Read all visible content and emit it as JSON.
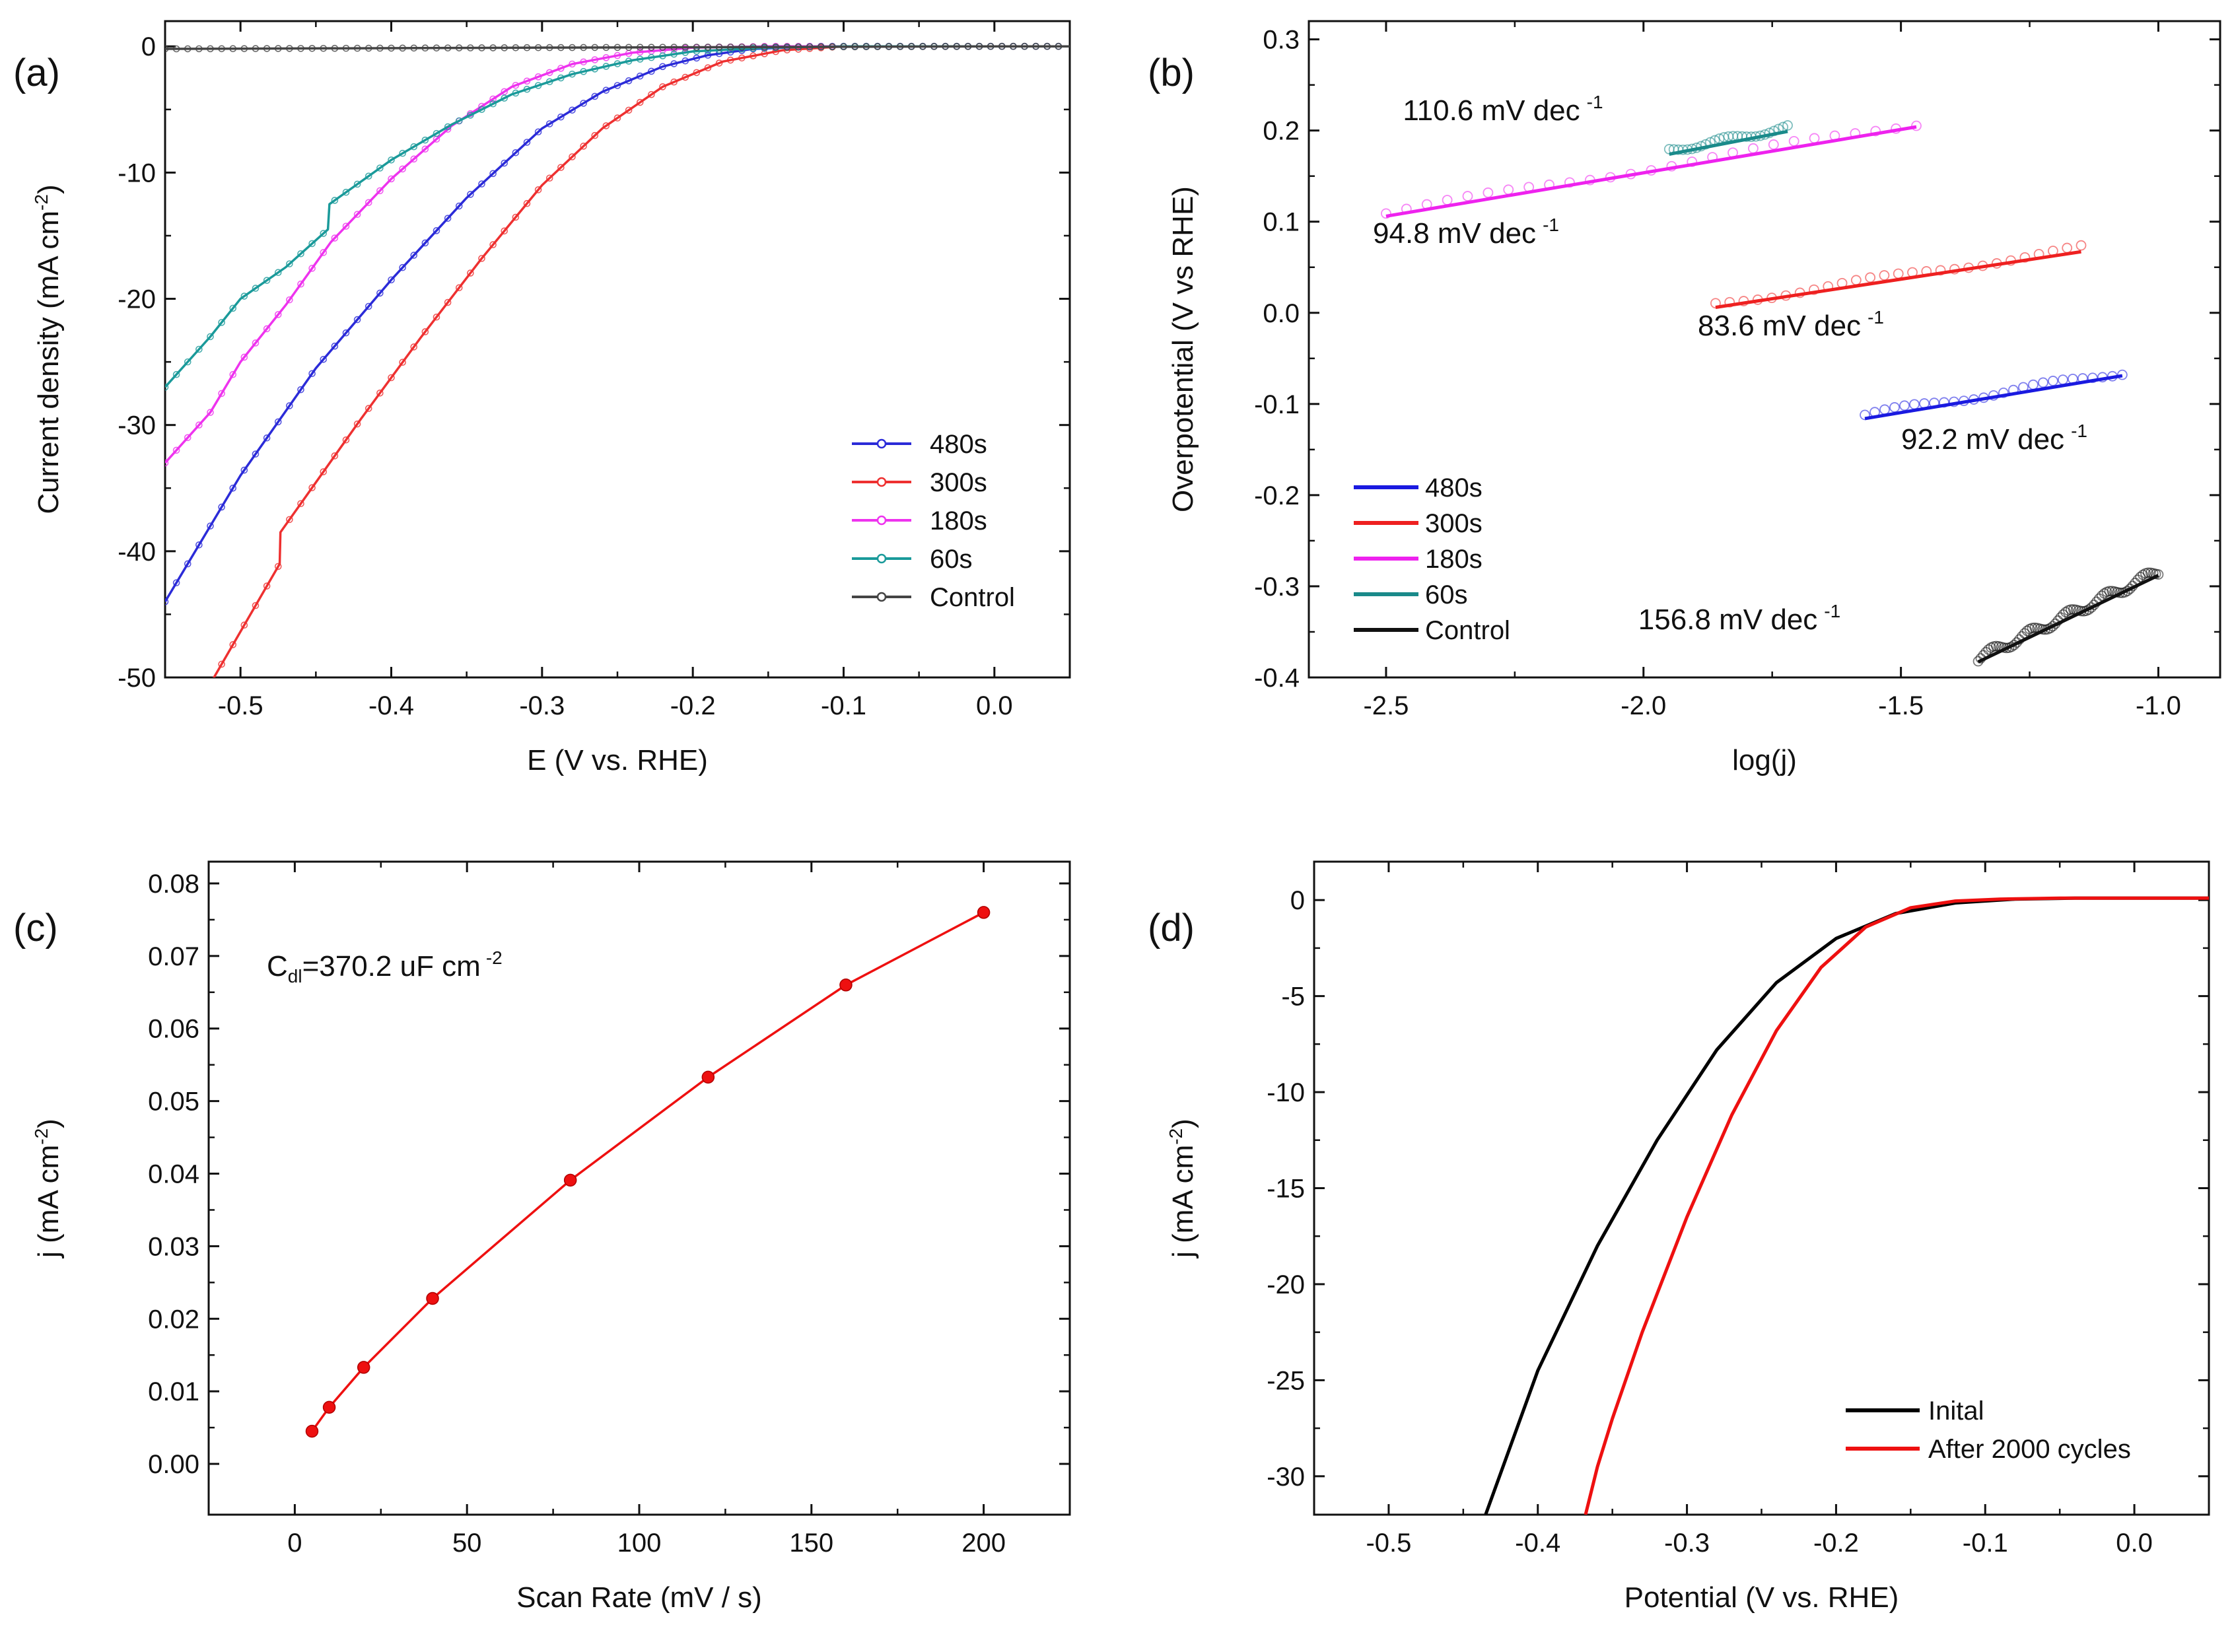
{
  "chart_data": [
    {
      "panel": "(a)",
      "type": "line",
      "xlabel": "E (V vs. RHE)",
      "ylabel": "Current density (mA cm",
      "ylabel_sup": "-2",
      "ylabel_end": ")",
      "xlim": [
        -0.55,
        0.05
      ],
      "ylim": [
        -50,
        2
      ],
      "xticks": [
        -0.5,
        -0.4,
        -0.3,
        -0.2,
        -0.1,
        0.0
      ],
      "xtick_labels": [
        "-0.5",
        "-0.4",
        "-0.3",
        "-0.2",
        "-0.1",
        "0.0"
      ],
      "yticks": [
        0,
        -10,
        -20,
        -30,
        -40,
        -50
      ],
      "ytick_labels": [
        "0",
        "-10",
        "-20",
        "-30",
        "-40",
        "-50"
      ],
      "legend_position": "bottom-right",
      "series": [
        {
          "name": "480s",
          "color": "#2b2bd8",
          "marker": "circle",
          "x": [
            -0.55,
            -0.5,
            -0.45,
            -0.4,
            -0.35,
            -0.3,
            -0.26,
            -0.22,
            -0.19,
            -0.16,
            -0.12,
            -0.05,
            0.0,
            0.05
          ],
          "y": [
            -44,
            -34,
            -25.5,
            -18.5,
            -12,
            -6.5,
            -3.6,
            -1.6,
            -0.7,
            -0.2,
            0,
            0,
            0,
            0
          ]
        },
        {
          "name": "300s",
          "color": "#ee3030",
          "marker": "circle",
          "x": [
            -0.52,
            -0.474,
            -0.4735,
            -0.42,
            -0.38,
            -0.34,
            -0.3,
            -0.26,
            -0.22,
            -0.18,
            -0.14,
            -0.1,
            -0.05,
            0.0,
            0.05
          ],
          "y": [
            -50.5,
            -41,
            -38.5,
            -29.5,
            -23,
            -16.8,
            -11,
            -6.5,
            -3.2,
            -1.2,
            -0.3,
            0,
            0,
            0,
            0
          ]
        },
        {
          "name": "180s",
          "color": "#ee33ee",
          "marker": "circle",
          "x": [
            -0.55,
            -0.52,
            -0.5,
            -0.47,
            -0.44,
            -0.4,
            -0.36,
            -0.32,
            -0.28,
            -0.24,
            -0.2,
            -0.15,
            -0.1,
            0.05
          ],
          "y": [
            -33,
            -29,
            -25,
            -20.5,
            -15.5,
            -10.5,
            -6.3,
            -3.2,
            -1.4,
            -0.5,
            -0.1,
            0,
            0,
            0
          ]
        },
        {
          "name": "60s",
          "color": "#1a9a9a",
          "marker": "circle",
          "x": [
            -0.55,
            -0.52,
            -0.5,
            -0.47,
            -0.442,
            -0.441,
            -0.4,
            -0.36,
            -0.32,
            -0.28,
            -0.24,
            -0.2,
            -0.15,
            -0.1,
            0.05
          ],
          "y": [
            -27,
            -23,
            -20,
            -17.5,
            -14.5,
            -12.5,
            -9,
            -6.2,
            -3.8,
            -2.2,
            -1.1,
            -0.4,
            -0.1,
            0,
            0
          ]
        },
        {
          "name": "Control",
          "color": "#444444",
          "marker": "circle",
          "x": [
            -0.55,
            -0.3,
            0.0,
            0.05
          ],
          "y": [
            -0.2,
            -0.1,
            0,
            0
          ]
        }
      ]
    },
    {
      "panel": "(b)",
      "type": "scatter",
      "xlabel": "log(j)",
      "ylabel": "Overpotential (V vs RHE)",
      "xlim": [
        -2.65,
        -0.88
      ],
      "ylim": [
        -0.4,
        0.32
      ],
      "xticks": [
        -2.5,
        -2.0,
        -1.5,
        -1.0
      ],
      "xtick_labels": [
        "-2.5",
        "-2.0",
        "-1.5",
        "-1.0"
      ],
      "yticks": [
        0.3,
        0.2,
        0.1,
        0.0,
        -0.1,
        -0.2,
        -0.3,
        -0.4
      ],
      "ytick_labels": [
        "0.3",
        "0.2",
        "0.1",
        "0.0",
        "-0.1",
        "-0.2",
        "-0.3",
        "-0.4"
      ],
      "legend_position": "bottom-left",
      "series": [
        {
          "name": "480s",
          "color": "#1a1ae0",
          "fit_x": [
            -1.57,
            -1.07
          ],
          "fit_y": [
            -0.116,
            -0.069
          ],
          "slope_label": "92.2 mV dec",
          "slope_unit_sup": "-1"
        },
        {
          "name": "300s",
          "color": "#ee2020",
          "fit_x": [
            -1.86,
            -1.15
          ],
          "fit_y": [
            0.006,
            0.067
          ],
          "slope_label": "83.6 mV dec",
          "slope_unit_sup": "-1"
        },
        {
          "name": "180s",
          "color": "#ee22ee",
          "fit_x": [
            -2.5,
            -1.47
          ],
          "fit_y": [
            0.106,
            0.204
          ],
          "slope_label": "94.8 mV dec",
          "slope_unit_sup": "-1"
        },
        {
          "name": "60s",
          "color": "#1a8a8a",
          "fit_x": [
            -1.95,
            -1.72
          ],
          "fit_y": [
            0.174,
            0.199
          ],
          "slope_label": "110.6 mV dec",
          "slope_unit_sup": "-1"
        },
        {
          "name": "Control",
          "color": "#111111",
          "fit_x": [
            -1.35,
            -1.0
          ],
          "fit_y": [
            -0.383,
            -0.288
          ],
          "slope_label": "156.8 mV dec",
          "slope_unit_sup": "-1"
        }
      ]
    },
    {
      "panel": "(c)",
      "type": "line",
      "xlabel": "Scan Rate (mV / s)",
      "ylabel": "j (mA cm",
      "ylabel_sup": "-2",
      "ylabel_end": ")",
      "xlim": [
        -25,
        225
      ],
      "ylim": [
        -0.007,
        0.083
      ],
      "xticks": [
        0,
        50,
        100,
        150,
        200
      ],
      "xtick_labels": [
        "0",
        "50",
        "100",
        "150",
        "200"
      ],
      "yticks": [
        0.0,
        0.01,
        0.02,
        0.03,
        0.04,
        0.05,
        0.06,
        0.07,
        0.08
      ],
      "ytick_labels": [
        "0.00",
        "0.01",
        "0.02",
        "0.03",
        "0.04",
        "0.05",
        "0.06",
        "0.07",
        "0.08"
      ],
      "annotation_main": "C",
      "annotation_sub": "dl",
      "annotation_rest": "=370.2 uF cm",
      "annotation_sup": "-2",
      "series": [
        {
          "name": "j",
          "color": "#ee1010",
          "x": [
            5,
            10,
            20,
            40,
            80,
            120,
            160,
            200
          ],
          "y": [
            0.0045,
            0.0078,
            0.0133,
            0.0228,
            0.0391,
            0.0533,
            0.066,
            0.076
          ]
        }
      ]
    },
    {
      "panel": "(d)",
      "type": "line",
      "xlabel": "Potential (V vs. RHE)",
      "ylabel": "j (mA cm",
      "ylabel_sup": "-2",
      "ylabel_end": ")",
      "xlim": [
        -0.55,
        0.05
      ],
      "ylim": [
        -32,
        2
      ],
      "xticks": [
        -0.5,
        -0.4,
        -0.3,
        -0.2,
        -0.1,
        0.0
      ],
      "xtick_labels": [
        "-0.5",
        "-0.4",
        "-0.3",
        "-0.2",
        "-0.1",
        "0.0"
      ],
      "yticks": [
        0,
        -5,
        -10,
        -15,
        -20,
        -25,
        -30
      ],
      "ytick_labels": [
        "0",
        "-5",
        "-10",
        "-15",
        "-20",
        "-25",
        "-30"
      ],
      "legend_position": "bottom-right",
      "series": [
        {
          "name": "Inital",
          "color": "#000000",
          "x": [
            -0.435,
            -0.4,
            -0.36,
            -0.32,
            -0.28,
            -0.24,
            -0.2,
            -0.16,
            -0.12,
            -0.08,
            -0.04,
            0.0,
            0.05
          ],
          "y": [
            -32,
            -24.5,
            -18,
            -12.5,
            -7.8,
            -4.3,
            -2.0,
            -0.7,
            -0.15,
            0.05,
            0.1,
            0.1,
            0.1
          ]
        },
        {
          "name": "After 2000 cycles",
          "color": "#ee1010",
          "x": [
            -0.368,
            -0.36,
            -0.35,
            -0.33,
            -0.3,
            -0.27,
            -0.24,
            -0.21,
            -0.18,
            -0.15,
            -0.12,
            -0.09,
            -0.05,
            0.0,
            0.05
          ],
          "y": [
            -32,
            -29.5,
            -27,
            -22.5,
            -16.5,
            -11.2,
            -6.8,
            -3.5,
            -1.4,
            -0.4,
            -0.05,
            0.05,
            0.1,
            0.1,
            0.1
          ]
        }
      ]
    }
  ]
}
